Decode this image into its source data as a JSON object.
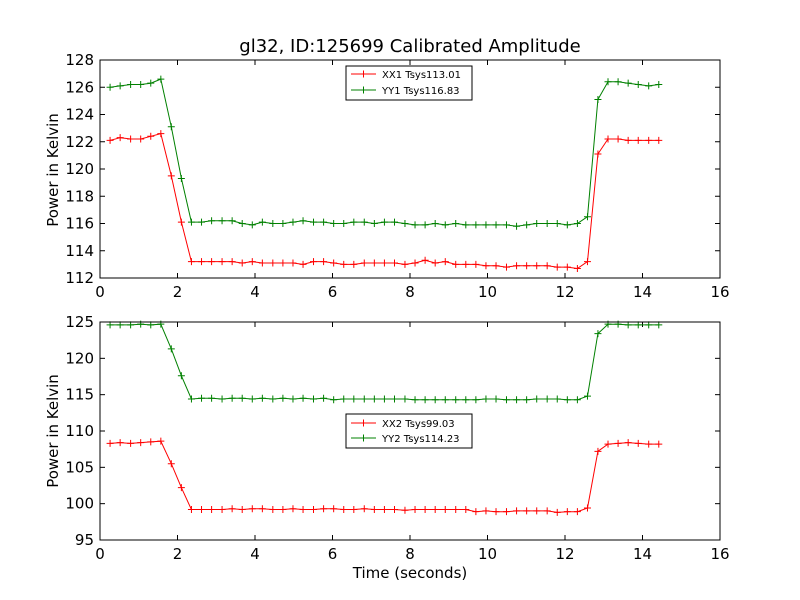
{
  "chart_data": [
    {
      "type": "line",
      "title": "gl32, ID:125699 Calibrated Amplitude",
      "xlabel": "",
      "ylabel": "Power in Kelvin",
      "xlim": [
        0,
        16
      ],
      "ylim": [
        112,
        128
      ],
      "xticks": [
        0,
        2,
        4,
        6,
        8,
        10,
        12,
        14,
        16
      ],
      "yticks": [
        112,
        114,
        116,
        118,
        120,
        122,
        124,
        126,
        128
      ],
      "legend": "top-center",
      "grid": false,
      "x": [
        0.26,
        0.52,
        0.79,
        1.05,
        1.31,
        1.57,
        1.84,
        2.1,
        2.36,
        2.62,
        2.88,
        3.15,
        3.41,
        3.67,
        3.93,
        4.19,
        4.46,
        4.72,
        4.98,
        5.24,
        5.51,
        5.77,
        6.03,
        6.29,
        6.55,
        6.82,
        7.08,
        7.34,
        7.6,
        7.87,
        8.13,
        8.39,
        8.65,
        8.91,
        9.18,
        9.44,
        9.7,
        9.96,
        10.22,
        10.49,
        10.75,
        11.01,
        11.27,
        11.54,
        11.8,
        12.06,
        12.32,
        12.58,
        12.85,
        13.11,
        13.37,
        13.63,
        13.89,
        14.16,
        14.42
      ],
      "series": [
        {
          "name": "XX1 Tsys113.01",
          "color": "#ff0000",
          "values": [
            122.1,
            122.3,
            122.2,
            122.2,
            122.4,
            122.6,
            119.5,
            116.1,
            113.2,
            113.2,
            113.2,
            113.2,
            113.2,
            113.1,
            113.2,
            113.1,
            113.1,
            113.1,
            113.1,
            113.0,
            113.2,
            113.2,
            113.1,
            113.0,
            113.0,
            113.1,
            113.1,
            113.1,
            113.1,
            113.0,
            113.1,
            113.3,
            113.1,
            113.2,
            113.0,
            113.0,
            113.0,
            112.9,
            112.9,
            112.8,
            112.9,
            112.9,
            112.9,
            112.9,
            112.8,
            112.8,
            112.7,
            113.2,
            121.1,
            122.2,
            122.2,
            122.1,
            122.1,
            122.1,
            122.1
          ]
        },
        {
          "name": "YY1 Tsys116.83",
          "color": "#008000",
          "values": [
            126.0,
            126.1,
            126.2,
            126.2,
            126.3,
            126.6,
            123.1,
            119.3,
            116.1,
            116.1,
            116.2,
            116.2,
            116.2,
            116.0,
            115.9,
            116.1,
            116.0,
            116.0,
            116.1,
            116.2,
            116.1,
            116.1,
            116.0,
            116.0,
            116.1,
            116.1,
            116.0,
            116.1,
            116.1,
            116.0,
            115.9,
            115.9,
            116.0,
            115.9,
            116.0,
            115.9,
            115.9,
            115.9,
            115.9,
            115.9,
            115.8,
            115.9,
            116.0,
            116.0,
            116.0,
            115.9,
            116.0,
            116.5,
            125.1,
            126.4,
            126.4,
            126.3,
            126.2,
            126.1,
            126.2
          ]
        }
      ]
    },
    {
      "type": "line",
      "title": "",
      "xlabel": "Time (seconds)",
      "ylabel": "Power in Kelvin",
      "xlim": [
        0,
        16
      ],
      "ylim": [
        95,
        125
      ],
      "xticks": [
        0,
        2,
        4,
        6,
        8,
        10,
        12,
        14,
        16
      ],
      "yticks": [
        95,
        100,
        105,
        110,
        115,
        120,
        125
      ],
      "legend": "center",
      "grid": false,
      "x": [
        0.26,
        0.52,
        0.79,
        1.05,
        1.31,
        1.57,
        1.84,
        2.1,
        2.36,
        2.62,
        2.88,
        3.15,
        3.41,
        3.67,
        3.93,
        4.19,
        4.46,
        4.72,
        4.98,
        5.24,
        5.51,
        5.77,
        6.03,
        6.29,
        6.55,
        6.82,
        7.08,
        7.34,
        7.6,
        7.87,
        8.13,
        8.39,
        8.65,
        8.91,
        9.18,
        9.44,
        9.7,
        9.96,
        10.22,
        10.49,
        10.75,
        11.01,
        11.27,
        11.54,
        11.8,
        12.06,
        12.32,
        12.58,
        12.85,
        13.11,
        13.37,
        13.63,
        13.89,
        14.16,
        14.42
      ],
      "series": [
        {
          "name": "XX2 Tsys99.03",
          "color": "#ff0000",
          "values": [
            108.3,
            108.4,
            108.3,
            108.4,
            108.5,
            108.6,
            105.5,
            102.2,
            99.2,
            99.2,
            99.2,
            99.2,
            99.3,
            99.2,
            99.3,
            99.3,
            99.2,
            99.2,
            99.3,
            99.2,
            99.2,
            99.3,
            99.3,
            99.2,
            99.2,
            99.3,
            99.2,
            99.2,
            99.2,
            99.1,
            99.2,
            99.2,
            99.2,
            99.2,
            99.2,
            99.2,
            98.9,
            99.0,
            98.9,
            98.9,
            99.0,
            99.0,
            99.0,
            99.0,
            98.8,
            98.9,
            98.9,
            99.4,
            107.2,
            108.2,
            108.3,
            108.4,
            108.3,
            108.2,
            108.2
          ]
        },
        {
          "name": "YY2 Tsys114.23",
          "color": "#008000",
          "values": [
            124.6,
            124.6,
            124.6,
            124.7,
            124.6,
            124.7,
            121.3,
            117.6,
            114.4,
            114.5,
            114.5,
            114.4,
            114.5,
            114.5,
            114.4,
            114.5,
            114.4,
            114.5,
            114.4,
            114.5,
            114.4,
            114.5,
            114.3,
            114.4,
            114.4,
            114.4,
            114.4,
            114.4,
            114.4,
            114.4,
            114.3,
            114.3,
            114.3,
            114.3,
            114.3,
            114.3,
            114.3,
            114.4,
            114.4,
            114.3,
            114.3,
            114.3,
            114.4,
            114.4,
            114.4,
            114.3,
            114.3,
            114.8,
            123.4,
            124.7,
            124.7,
            124.6,
            124.6,
            124.6,
            124.6
          ]
        }
      ]
    }
  ]
}
